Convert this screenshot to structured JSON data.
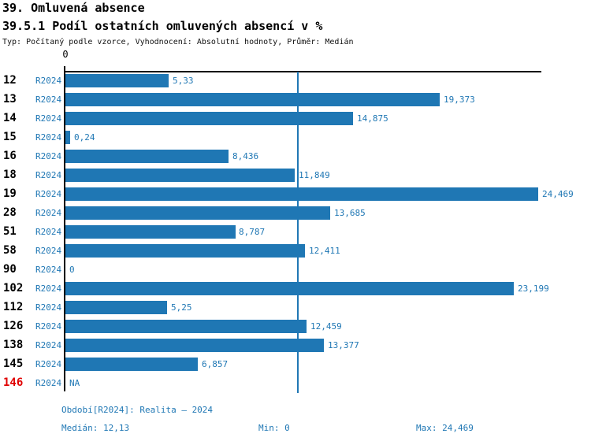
{
  "header": {
    "title": "39. Omluvená absence",
    "subtitle": "39.5.1 Podíl ostatních omluvených absencí v %",
    "meta": "Typ: Počítaný podle vzorce, Vyhodnocení: Absolutní hodnoty, Průměr: Medián"
  },
  "chart_data": {
    "type": "bar",
    "orientation": "horizontal",
    "title": "39.5.1 Podíl ostatních omluvených absencí v %",
    "series_label": "R2024",
    "axis_zero_label": "0",
    "xlim": [
      0,
      24.469
    ],
    "grid": false,
    "median_line_value": 12.13,
    "categories": [
      "12",
      "13",
      "14",
      "15",
      "16",
      "18",
      "19",
      "28",
      "51",
      "58",
      "90",
      "102",
      "112",
      "126",
      "138",
      "145",
      "146"
    ],
    "values": [
      5.33,
      19.373,
      14.875,
      0.24,
      8.436,
      11.849,
      24.469,
      13.685,
      8.787,
      12.411,
      0,
      23.199,
      5.25,
      12.459,
      13.377,
      6.857,
      null
    ],
    "value_labels": [
      "5,33",
      "19,373",
      "14,875",
      "0,24",
      "8,436",
      "11,849",
      "24,469",
      "13,685",
      "8,787",
      "12,411",
      "0",
      "23,199",
      "5,25",
      "12,459",
      "13,377",
      "6,857",
      "NA"
    ],
    "highlighted_categories": [
      "146"
    ]
  },
  "footer": {
    "period": "Období[R2024]: Realita – 2024",
    "median": "Medián: 12,13",
    "min": "Min: 0",
    "max": "Max: 24,469"
  },
  "colors": {
    "bar_blue": "#1f77b4",
    "text_blue": "#1f77b4",
    "median_line_blue": "#2077b4",
    "highlight_red": "#e00000",
    "axis_black": "#000000"
  }
}
